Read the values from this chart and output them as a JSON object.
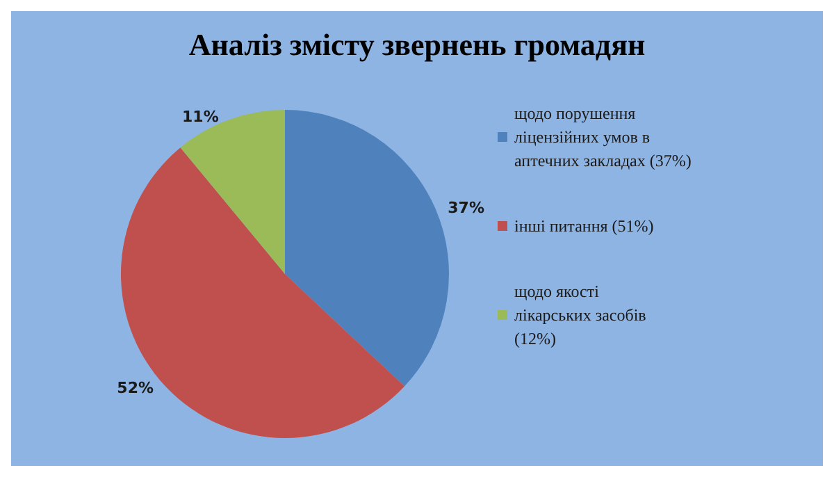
{
  "chart_data": {
    "type": "pie",
    "title": "Аналіз змісту звернень громадян",
    "categories": [
      "щодо порушення ліцензійних умов в аптечних закладах (37%)",
      "інші питання (51%)",
      "щодо якості лікарських засобів (12%)"
    ],
    "values": [
      37,
      52,
      11
    ],
    "colors": [
      "#4f81bd",
      "#c0504d",
      "#9bbb59"
    ],
    "value_labels": [
      "37%",
      "52%",
      "11%"
    ],
    "legend": "right"
  }
}
